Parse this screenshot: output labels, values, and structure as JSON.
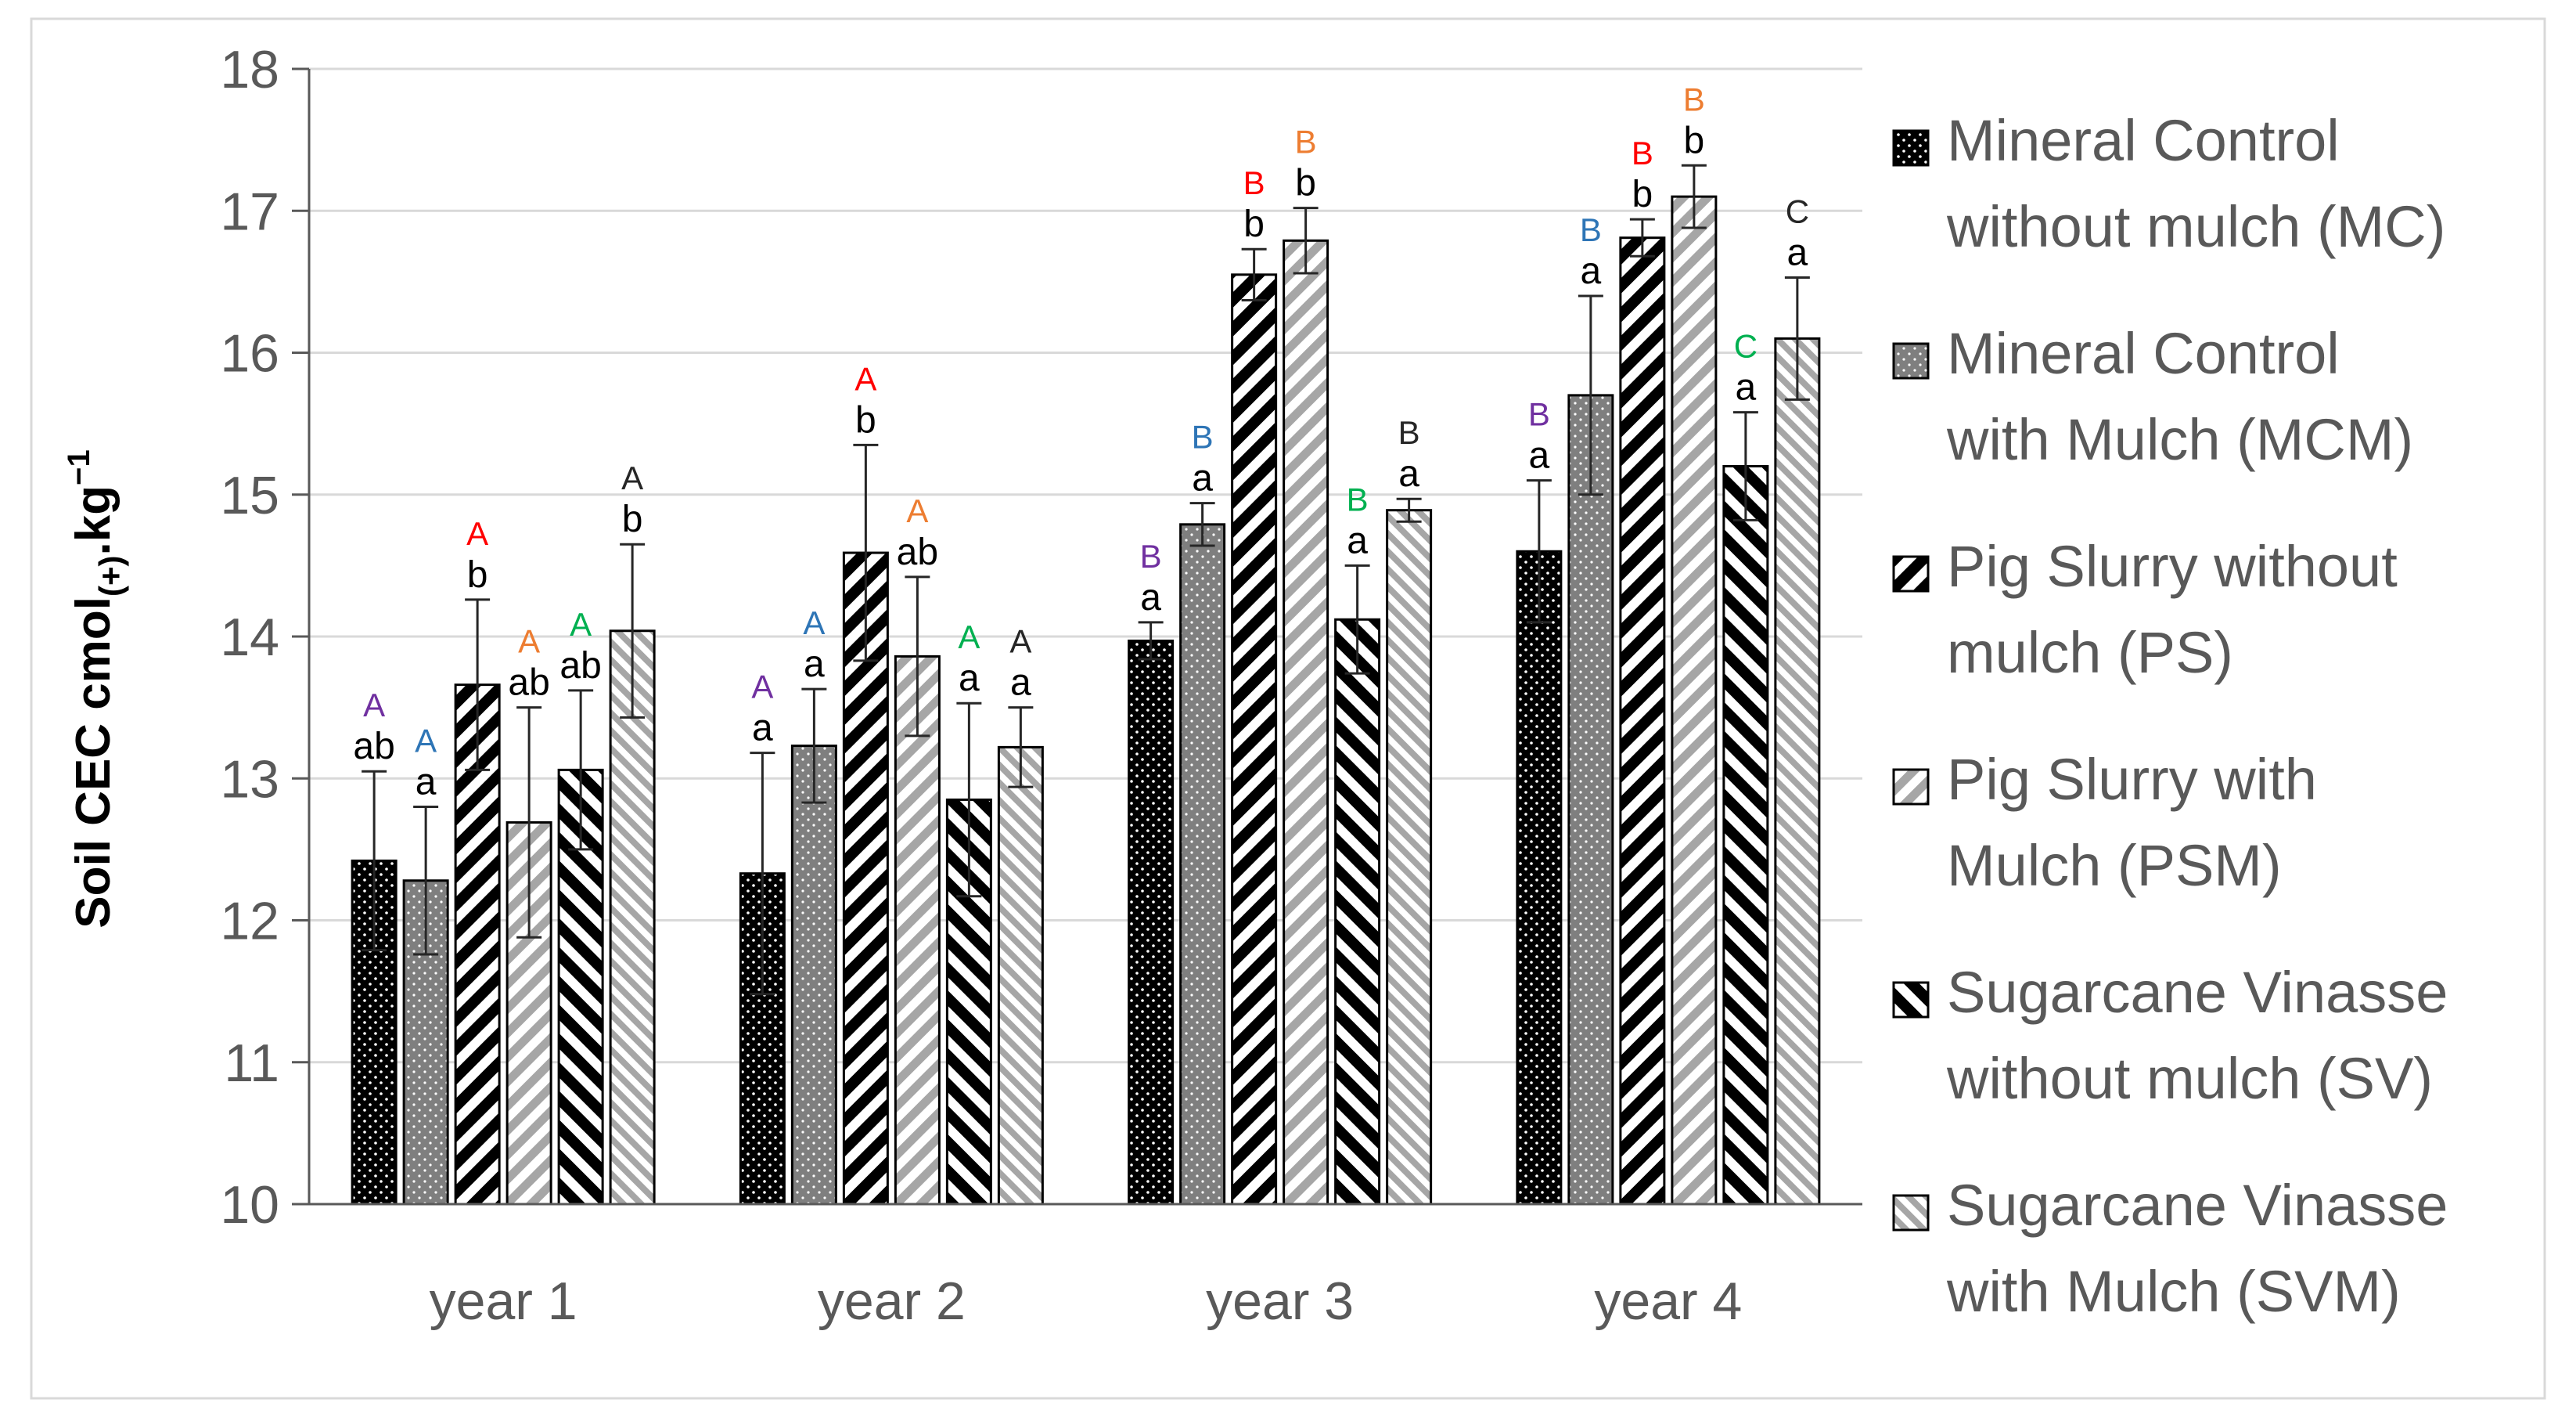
{
  "chart_data": {
    "type": "bar",
    "title": "",
    "xlabel": "",
    "ylabel_main": "Soil  CEC    cmol",
    "ylabel_sub": "(+)",
    "ylabel_unit": ".kg",
    "ylabel_sup": "−1",
    "ylim": [
      10,
      18
    ],
    "yticks": [
      "10",
      "11",
      "12",
      "13",
      "14",
      "15",
      "16",
      "17",
      "18"
    ],
    "grid": true,
    "legend_position": "right",
    "categories": [
      "year 1",
      "year 2",
      "year 3",
      "year 4"
    ],
    "series": [
      {
        "name": "Mineral Control without mulch (MC)",
        "legend_lines": [
          "Mineral Control",
          "without mulch (MC)"
        ],
        "pattern": "dots-black",
        "values": [
          12.42,
          12.33,
          13.97,
          14.6
        ],
        "errors": [
          0.63,
          0.85,
          0.13,
          0.5
        ],
        "letters": [
          "ab",
          "a",
          "a",
          "a"
        ],
        "upper_letters": [
          "A",
          "A",
          "B",
          "B"
        ],
        "upper_color": "#7030a0"
      },
      {
        "name": "Mineral Control with Mulch (MCM)",
        "legend_lines": [
          "Mineral Control",
          "with Mulch (MCM)"
        ],
        "pattern": "dots-gray",
        "values": [
          12.28,
          13.23,
          14.79,
          15.7
        ],
        "errors": [
          0.52,
          0.4,
          0.15,
          0.7
        ],
        "letters": [
          "a",
          "a",
          "a",
          "a"
        ],
        "upper_letters": [
          "A",
          "A",
          "B",
          "B"
        ],
        "upper_color": "#2e75b6"
      },
      {
        "name": "Pig Slurry without mulch (PS)",
        "legend_lines": [
          "Pig Slurry without",
          "mulch (PS)"
        ],
        "pattern": "diag-black-wide",
        "values": [
          13.66,
          14.59,
          16.55,
          16.81
        ],
        "errors": [
          0.6,
          0.76,
          0.18,
          0.13
        ],
        "letters": [
          "b",
          "b",
          "b",
          "b"
        ],
        "upper_letters": [
          "A",
          "A",
          "B",
          "B"
        ],
        "upper_color": "#ff0000"
      },
      {
        "name": "Pig Slurry with Mulch (PSM)",
        "legend_lines": [
          "Pig Slurry with",
          "Mulch (PSM)"
        ],
        "pattern": "diag-gray-wide",
        "values": [
          12.69,
          13.86,
          16.79,
          17.1
        ],
        "errors": [
          0.81,
          0.56,
          0.23,
          0.22
        ],
        "letters": [
          "ab",
          "ab",
          "b",
          "b"
        ],
        "upper_letters": [
          "A",
          "A",
          "B",
          "B"
        ],
        "upper_color": "#ed7d31"
      },
      {
        "name": "Sugarcane Vinasse without mulch (SV)",
        "legend_lines": [
          "Sugarcane Vinasse",
          "without mulch (SV)"
        ],
        "pattern": "back-black-wide",
        "values": [
          13.06,
          12.85,
          14.12,
          15.2
        ],
        "errors": [
          0.56,
          0.68,
          0.38,
          0.38
        ],
        "letters": [
          "ab",
          "a",
          "a",
          "a"
        ],
        "upper_letters": [
          "A",
          "A",
          "B",
          "C"
        ],
        "upper_color": "#00b050"
      },
      {
        "name": "Sugarcane Vinasse with Mulch (SVM)",
        "legend_lines": [
          "Sugarcane Vinasse",
          "with Mulch (SVM)"
        ],
        "pattern": "back-gray-fine",
        "values": [
          14.04,
          13.22,
          14.89,
          16.1
        ],
        "errors": [
          0.61,
          0.28,
          0.08,
          0.43
        ],
        "letters": [
          "b",
          "a",
          "a",
          "a"
        ],
        "upper_letters": [
          "A",
          "A",
          "B",
          "C"
        ],
        "upper_color": "#262626"
      }
    ]
  }
}
